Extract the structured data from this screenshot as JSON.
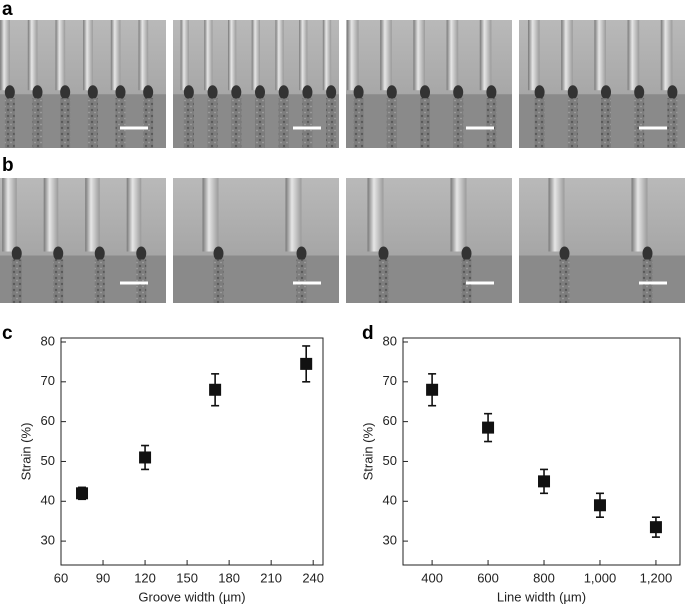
{
  "panel_labels": [
    "a",
    "b",
    "c",
    "d"
  ],
  "chart_data": [
    {
      "type": "scatter",
      "xlabel": "Groove width (µm)",
      "ylabel": "Strain (%)",
      "x": [
        75,
        120,
        170,
        235
      ],
      "values": [
        42,
        51,
        68,
        74.5
      ],
      "errors": [
        1.5,
        3,
        4,
        4.5
      ],
      "color": "#111111",
      "xlim": [
        60,
        247
      ],
      "xticks": [
        60,
        90,
        120,
        150,
        180,
        210,
        240
      ],
      "ylim": [
        24,
        81
      ],
      "yticks": [
        30,
        40,
        50,
        60,
        70,
        80
      ]
    },
    {
      "type": "scatter",
      "xlabel": "Line width (µm)",
      "ylabel": "Strain (%)",
      "x": [
        400,
        600,
        800,
        1000,
        1200
      ],
      "values": [
        68,
        58.5,
        45,
        39,
        33.5
      ],
      "errors": [
        4,
        3.5,
        3,
        3,
        2.5
      ],
      "color": "#111111",
      "xlim": [
        296,
        1286
      ],
      "xticks": [
        400,
        600,
        800,
        {
          "value": 1000,
          "label": "1,000"
        },
        {
          "value": 1200,
          "label": "1,200"
        }
      ],
      "ylim": [
        24,
        81
      ],
      "yticks": [
        30,
        40,
        50,
        60,
        70,
        80
      ]
    }
  ]
}
